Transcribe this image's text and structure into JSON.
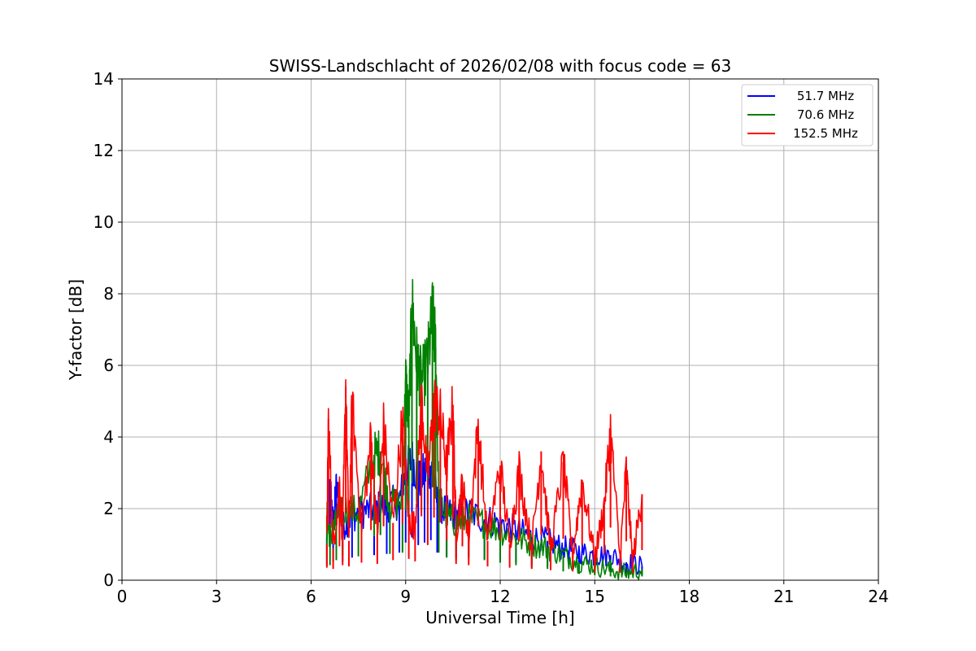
{
  "chart_data": {
    "type": "line",
    "title": "SWISS-Landschlacht of 2026/02/08 with focus code = 63",
    "xlabel": "Universal Time [h]",
    "ylabel": "Y-factor [dB]",
    "xlim": [
      0,
      24
    ],
    "ylim": [
      0,
      14
    ],
    "xticks": [
      0,
      3,
      6,
      9,
      12,
      15,
      18,
      21,
      24
    ],
    "yticks": [
      0,
      2,
      4,
      6,
      8,
      10,
      12,
      14
    ],
    "grid": true,
    "legend_position": "top-right",
    "series": [
      {
        "name": "51.7 MHz",
        "legend_label": " 51.7 MHz",
        "color": "#0000ff",
        "x": [
          6.5,
          6.6,
          6.7,
          6.8,
          7.0,
          7.3,
          7.6,
          8.0,
          8.4,
          8.8,
          9.0,
          9.2,
          9.4,
          9.6,
          9.8,
          10.0,
          10.3,
          10.6,
          11.0,
          11.5,
          12.0,
          12.5,
          13.0,
          13.5,
          14.0,
          14.5,
          15.0,
          15.5,
          16.0,
          16.5
        ],
        "values": [
          1.2,
          2.7,
          1.5,
          2.6,
          1.5,
          1.8,
          1.9,
          2.0,
          2.1,
          2.2,
          3.0,
          3.4,
          2.8,
          3.0,
          3.2,
          2.2,
          1.9,
          1.8,
          1.9,
          1.7,
          1.6,
          1.4,
          1.2,
          1.1,
          0.9,
          0.8,
          0.7,
          0.7,
          0.5,
          0.4
        ]
      },
      {
        "name": "70.6 MHz",
        "legend_label": " 70.6 MHz",
        "color": "#008000",
        "x": [
          6.5,
          6.6,
          6.8,
          7.0,
          7.5,
          8.0,
          8.2,
          8.5,
          8.9,
          9.0,
          9.1,
          9.2,
          9.35,
          9.5,
          9.7,
          9.85,
          9.95,
          10.05,
          10.3,
          10.6,
          11.0,
          11.5,
          12.0,
          12.5,
          13.0,
          13.5,
          14.0,
          14.5,
          15.0,
          15.5,
          16.0,
          16.5
        ],
        "values": [
          1.8,
          1.2,
          1.6,
          2.0,
          1.9,
          3.5,
          3.6,
          2.1,
          2.2,
          5.6,
          4.5,
          7.7,
          6.2,
          5.5,
          6.1,
          7.4,
          6.5,
          2.2,
          1.8,
          1.6,
          1.7,
          1.6,
          1.4,
          1.2,
          1.0,
          0.9,
          0.7,
          0.5,
          0.4,
          0.3,
          0.2,
          0.3
        ]
      },
      {
        "name": "152.5 MHz",
        "legend_label": "152.5 MHz",
        "color": "#ff0000",
        "x": [
          6.5,
          6.55,
          6.7,
          6.9,
          7.0,
          7.1,
          7.2,
          7.3,
          7.6,
          7.9,
          8.1,
          8.3,
          8.6,
          8.9,
          9.1,
          9.3,
          9.5,
          9.7,
          9.9,
          10.1,
          10.3,
          10.5,
          10.6,
          10.8,
          11.0,
          11.3,
          11.6,
          12.0,
          12.3,
          12.6,
          13.0,
          13.3,
          13.6,
          14.0,
          14.3,
          14.6,
          15.0,
          15.3,
          15.5,
          15.8,
          16.0,
          16.2,
          16.5
        ],
        "values": [
          1.0,
          4.5,
          0.9,
          2.7,
          1.2,
          5.4,
          1.1,
          5.0,
          1.4,
          4.0,
          1.3,
          4.3,
          1.6,
          4.5,
          1.7,
          1.5,
          5.1,
          2.8,
          5.0,
          4.6,
          3.2,
          4.9,
          1.3,
          2.7,
          1.2,
          4.3,
          1.1,
          3.2,
          1.0,
          3.1,
          0.9,
          3.6,
          0.8,
          3.3,
          0.7,
          2.8,
          0.6,
          2.1,
          4.2,
          0.6,
          3.1,
          0.5,
          2.4
        ]
      }
    ]
  }
}
